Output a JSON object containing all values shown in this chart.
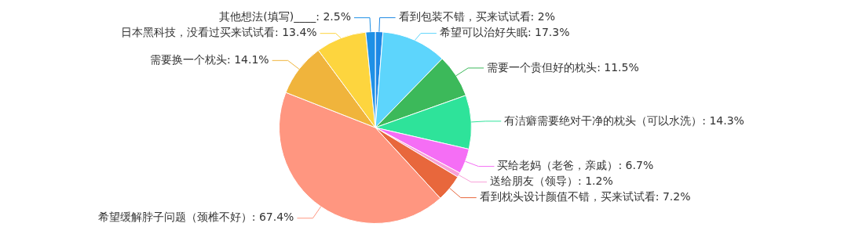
{
  "chart_data": {
    "type": "pie",
    "categories": [
      "看到包装不错，买来试试看",
      "希望可以治好失眠",
      "需要一个贵但好的枕头",
      "有洁癖需要绝对干净的枕头（可以水洗）",
      "买给老妈（老爸，亲戚）",
      "送给朋友（领导）",
      "看到枕头设计颜值不错，买来试试看",
      "希望缓解脖子问题（颈椎不好）",
      "需要换一个枕头",
      "日本黑科技，没看过买来试试看",
      "其他想法(填写)____"
    ],
    "values": [
      2,
      17.3,
      11.5,
      14.3,
      6.7,
      1.2,
      7.2,
      67.4,
      14.1,
      13.4,
      2.5
    ],
    "value_labels": [
      "2%",
      "17.3%",
      "11.5%",
      "14.3%",
      "6.7%",
      "1.2%",
      "7.2%",
      "67.4%",
      "14.1%",
      "13.4%",
      "2.5%"
    ],
    "colors": [
      "#1e88e5",
      "#5dd5fc",
      "#3cb95a",
      "#2ee39a",
      "#f56ef5",
      "#f8a0d8",
      "#e8673c",
      "#ff9680",
      "#f0b43c",
      "#fdd53e",
      "#1e90e6"
    ],
    "legend": false
  }
}
